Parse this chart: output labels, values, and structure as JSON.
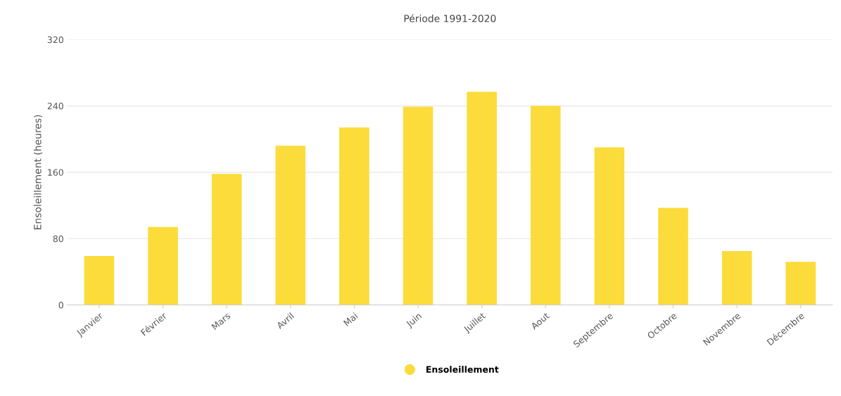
{
  "chart_data": {
    "type": "bar",
    "title": "Période 1991-2020",
    "ylabel": "Ensoleillement (heures)",
    "categories": [
      "Janvier",
      "Février",
      "Mars",
      "Avril",
      "Mai",
      "Juin",
      "Juillet",
      "Aout",
      "Septembre",
      "Octobre",
      "Novembre",
      "Décembre"
    ],
    "series": [
      {
        "name": "Ensoleillement",
        "color": "#fbdc3a",
        "values": [
          59,
          94,
          158,
          192,
          214,
          239,
          257,
          240,
          190,
          117,
          65,
          52
        ]
      }
    ],
    "ylim": [
      0,
      320
    ],
    "yticks": [
      0,
      80,
      160,
      240,
      320
    ],
    "grid": "y",
    "legend": "bottom"
  }
}
